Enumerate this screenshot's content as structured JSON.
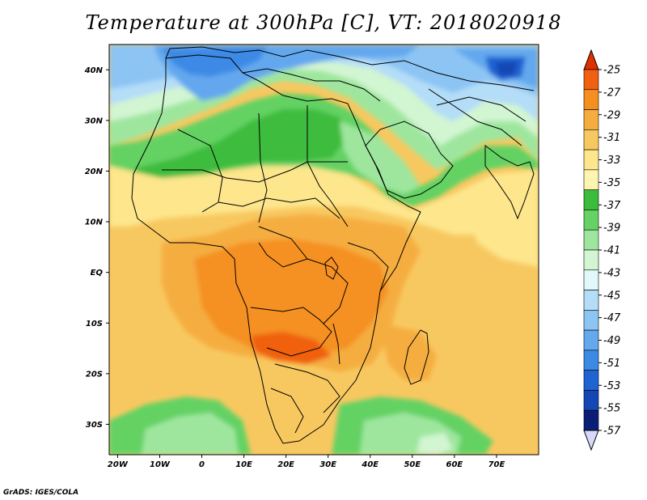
{
  "title": "Temperature at 300hPa [C], VT: 2018020918",
  "credit": "GrADS: IGES/COLA",
  "map": {
    "region": "Africa",
    "variable": "Temperature at 300hPa",
    "lon_range": [
      -22,
      80
    ],
    "lat_range": [
      -36,
      45
    ],
    "lat_ticks": [
      {
        "value": 40,
        "label": "40N"
      },
      {
        "value": 30,
        "label": "30N"
      },
      {
        "value": 20,
        "label": "20N"
      },
      {
        "value": 10,
        "label": "10N"
      },
      {
        "value": 0,
        "label": "EQ"
      },
      {
        "value": -10,
        "label": "10S"
      },
      {
        "value": -20,
        "label": "20S"
      },
      {
        "value": -30,
        "label": "30S"
      }
    ],
    "lon_ticks": [
      {
        "value": -20,
        "label": "20W"
      },
      {
        "value": -10,
        "label": "10W"
      },
      {
        "value": 0,
        "label": "0"
      },
      {
        "value": 10,
        "label": "10E"
      },
      {
        "value": 20,
        "label": "20E"
      },
      {
        "value": 30,
        "label": "30E"
      },
      {
        "value": 40,
        "label": "40E"
      },
      {
        "value": 50,
        "label": "50E"
      },
      {
        "value": 60,
        "label": "60E"
      },
      {
        "value": 70,
        "label": "70E"
      }
    ]
  },
  "colorbar": {
    "labels": [
      "-25",
      "-27",
      "-29",
      "-31",
      "-33",
      "-35",
      "-37",
      "-39",
      "-41",
      "-43",
      "-45",
      "-47",
      "-49",
      "-51",
      "-53",
      "-55",
      "-57"
    ],
    "colors": [
      "#e03000",
      "#f06010",
      "#f59020",
      "#f5ad40",
      "#f8c860",
      "#fde68c",
      "#fff5b0",
      "#3cbc3c",
      "#64d264",
      "#9ee69e",
      "#d2f5d2",
      "#e2f8fa",
      "#b4ddf8",
      "#8cc4f4",
      "#64a8ee",
      "#3c8ae6",
      "#1e64d2",
      "#1446b4",
      "#0a1e78",
      "#d8d8f8"
    ]
  }
}
